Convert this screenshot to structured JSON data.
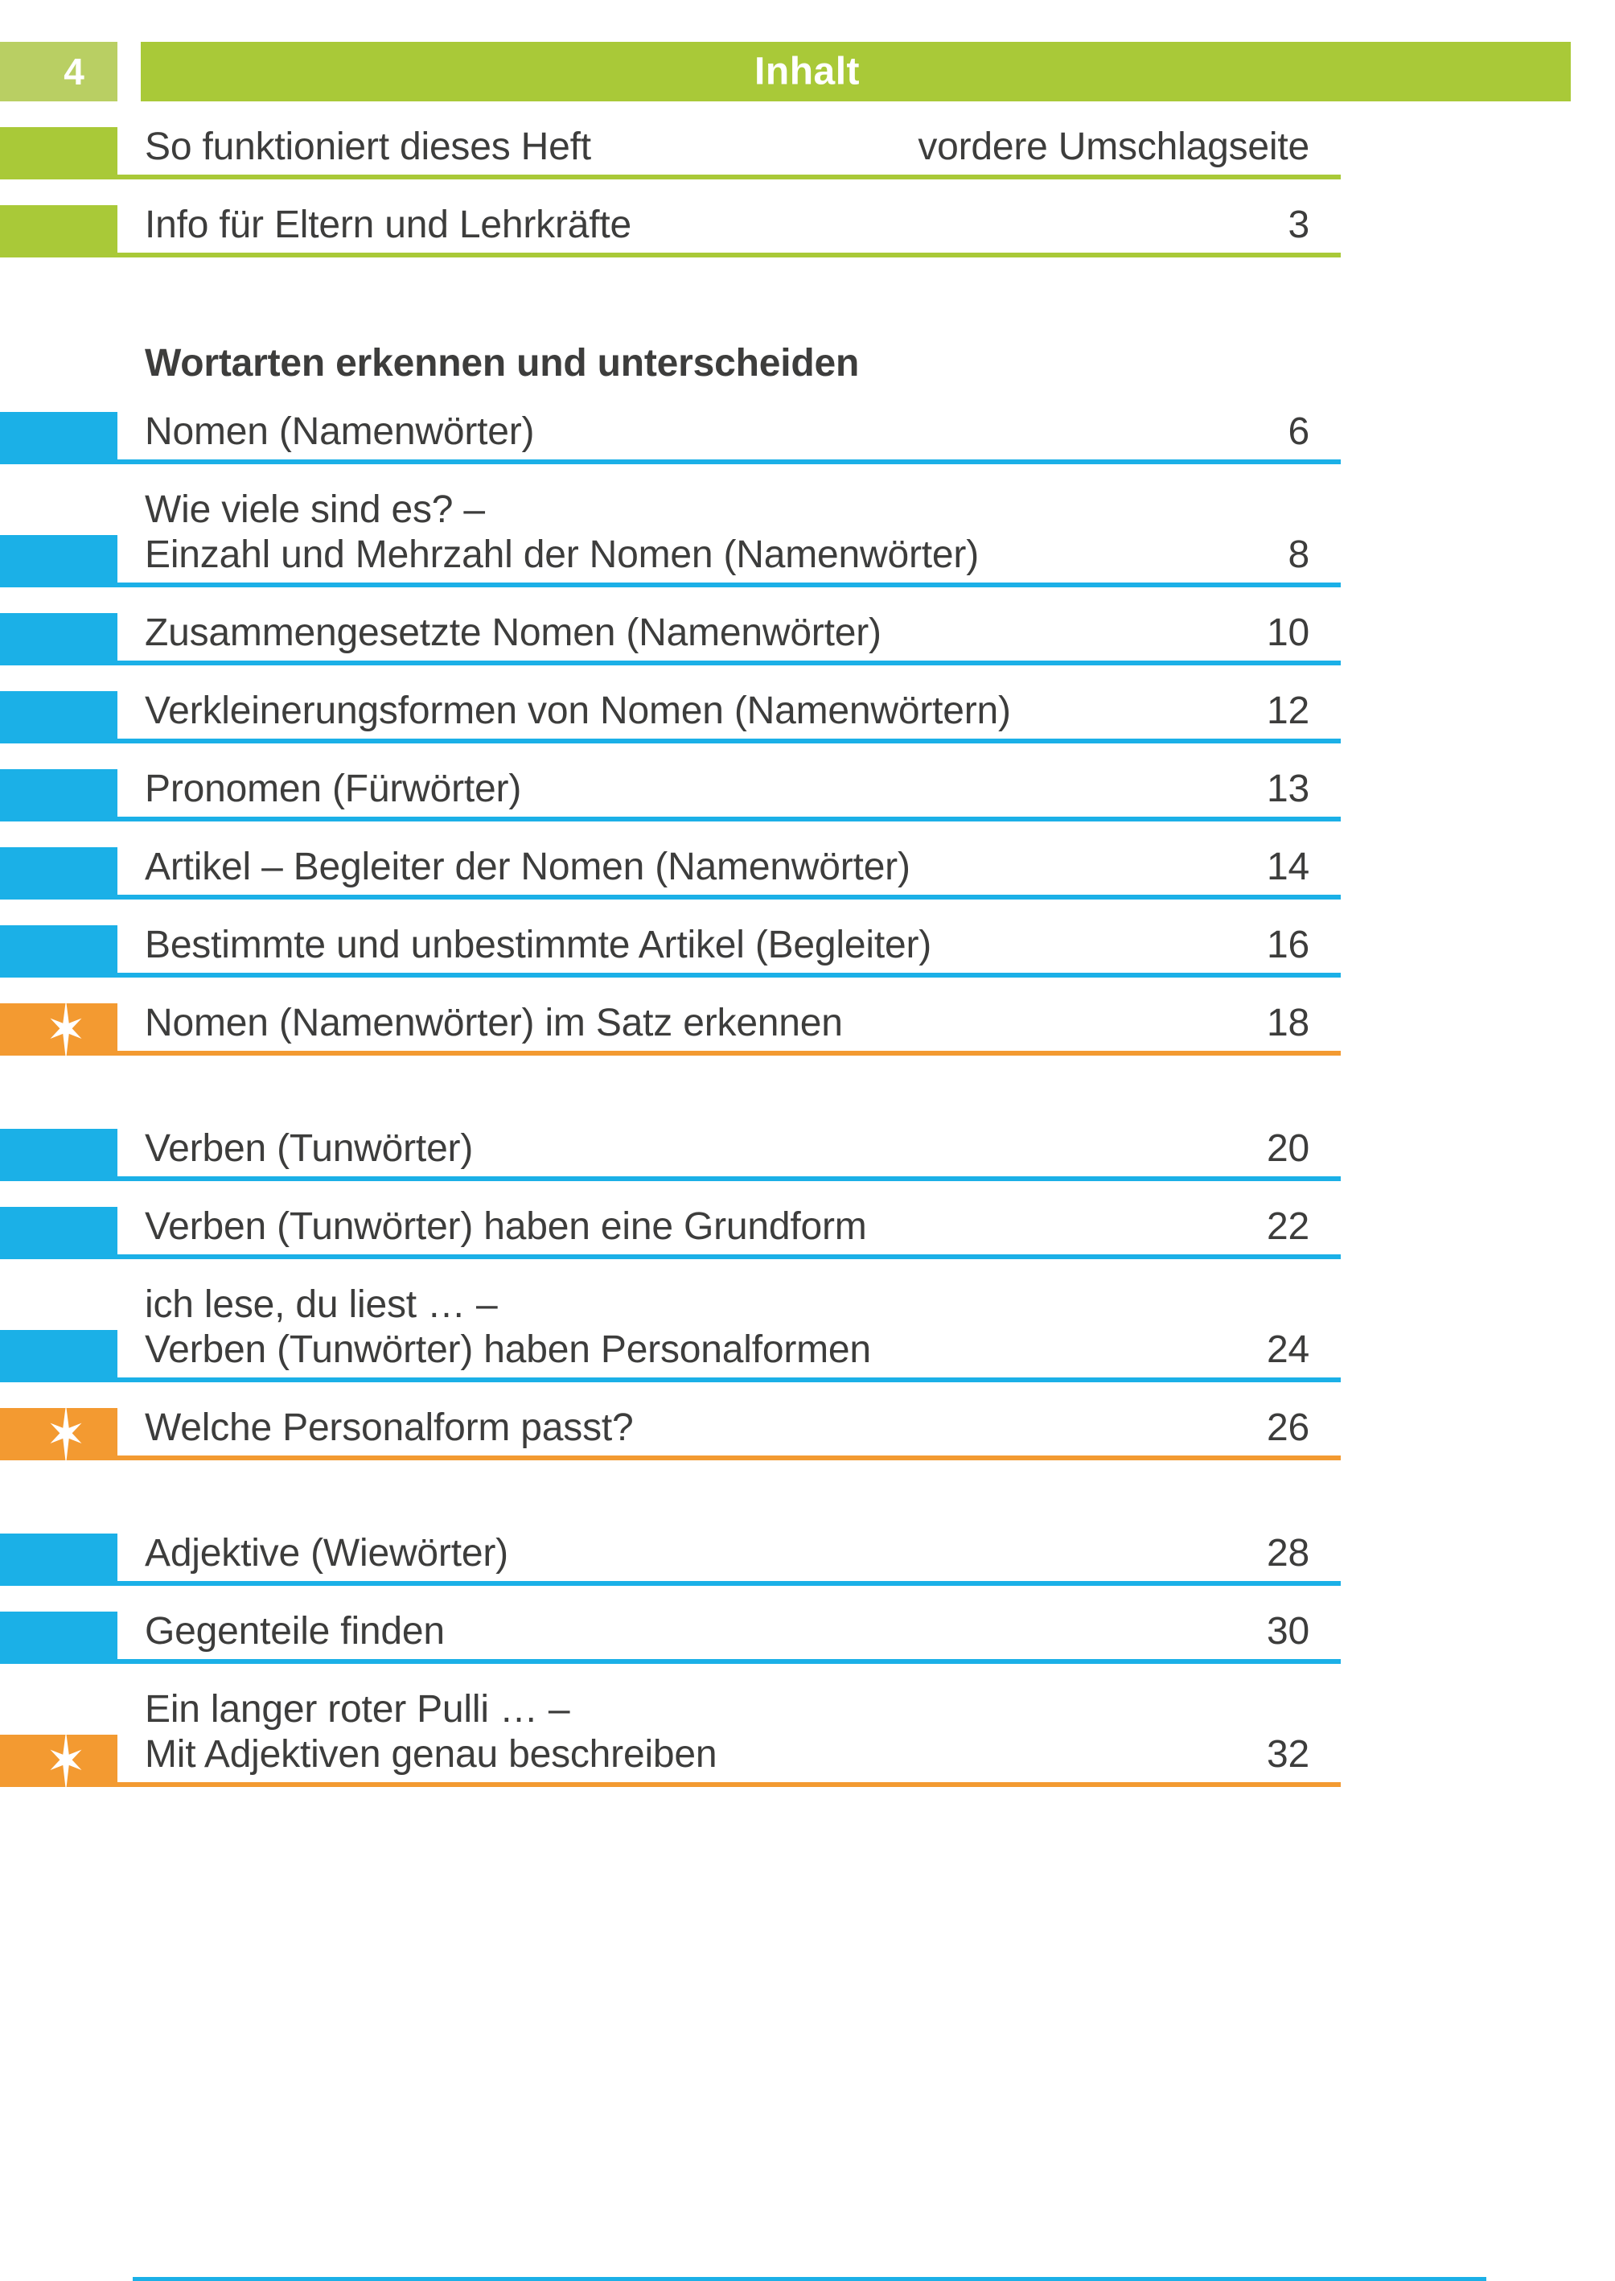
{
  "colors": {
    "green": "#a9c938",
    "green_light": "#b9cf63",
    "blue": "#1bb0e7",
    "orange": "#f39a31",
    "text": "#3d3d3c"
  },
  "header": {
    "page_number": "4",
    "title": "Inhalt"
  },
  "icons": {
    "star": "star-icon"
  },
  "toc": {
    "items": [
      {
        "type": "row",
        "color": "green",
        "lines": [
          "So funktioniert dieses Heft"
        ],
        "page": "vordere Umschlagseite"
      },
      {
        "type": "row",
        "color": "green",
        "lines": [
          "Info für Eltern und Lehrkräfte"
        ],
        "page": "3"
      },
      {
        "type": "heading",
        "text": "Wortarten erkennen und unterscheiden"
      },
      {
        "type": "row",
        "color": "blue",
        "lines": [
          "Nomen (Namenwörter)"
        ],
        "page": "6"
      },
      {
        "type": "row",
        "color": "blue",
        "lines": [
          "Wie viele sind es? –",
          "Einzahl und Mehrzahl der Nomen (Namenwörter)"
        ],
        "page": "8"
      },
      {
        "type": "row",
        "color": "blue",
        "lines": [
          "Zusammengesetzte Nomen (Namenwörter)"
        ],
        "page": "10"
      },
      {
        "type": "row",
        "color": "blue",
        "lines": [
          "Verkleinerungsformen von Nomen (Namenwörtern)"
        ],
        "page": "12"
      },
      {
        "type": "row",
        "color": "blue",
        "lines": [
          "Pronomen (Fürwörter)"
        ],
        "page": "13"
      },
      {
        "type": "row",
        "color": "blue",
        "lines": [
          "Artikel – Begleiter der Nomen (Namenwörter)"
        ],
        "page": "14"
      },
      {
        "type": "row",
        "color": "blue",
        "lines": [
          "Bestimmte und unbestimmte Artikel (Begleiter)"
        ],
        "page": "16"
      },
      {
        "type": "row",
        "color": "orange",
        "star": true,
        "lines": [
          "Nomen (Namenwörter) im Satz erkennen"
        ],
        "page": "18"
      },
      {
        "type": "row",
        "color": "blue",
        "gap_before": true,
        "lines": [
          "Verben (Tunwörter)"
        ],
        "page": "20"
      },
      {
        "type": "row",
        "color": "blue",
        "lines": [
          "Verben (Tunwörter) haben eine Grundform"
        ],
        "page": "22"
      },
      {
        "type": "row",
        "color": "blue",
        "lines": [
          "ich lese, du liest … –",
          "Verben (Tunwörter) haben Personalformen"
        ],
        "page": "24"
      },
      {
        "type": "row",
        "color": "orange",
        "star": true,
        "lines": [
          "Welche Personalform passt?"
        ],
        "page": "26"
      },
      {
        "type": "row",
        "color": "blue",
        "gap_before": true,
        "lines": [
          "Adjektive (Wiewörter)"
        ],
        "page": "28"
      },
      {
        "type": "row",
        "color": "blue",
        "lines": [
          "Gegenteile finden"
        ],
        "page": "30"
      },
      {
        "type": "row",
        "color": "orange",
        "star": true,
        "lines": [
          "Ein langer roter Pulli … –",
          "Mit Adjektiven genau beschreiben"
        ],
        "page": "32"
      }
    ]
  }
}
